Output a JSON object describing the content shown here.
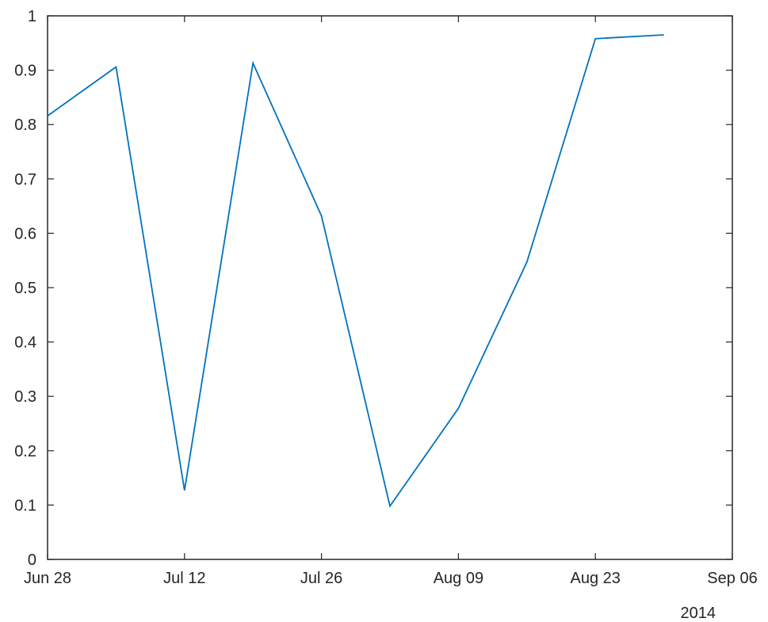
{
  "chart_data": {
    "type": "line",
    "title": "",
    "xlabel": "",
    "ylabel": "",
    "x_secondary_label": "2014",
    "x_axis": {
      "type": "date",
      "range": [
        "2014-06-28",
        "2014-09-06"
      ],
      "ticks": [
        {
          "date": "2014-06-28",
          "label": "Jun 28"
        },
        {
          "date": "2014-07-12",
          "label": "Jul 12"
        },
        {
          "date": "2014-07-26",
          "label": "Jul 26"
        },
        {
          "date": "2014-08-09",
          "label": "Aug 09"
        },
        {
          "date": "2014-08-23",
          "label": "Aug 23"
        },
        {
          "date": "2014-09-06",
          "label": "Sep 06"
        }
      ]
    },
    "y_axis": {
      "range": [
        0,
        1
      ],
      "ticks": [
        {
          "value": 0,
          "label": "0"
        },
        {
          "value": 0.1,
          "label": "0.1"
        },
        {
          "value": 0.2,
          "label": "0.2"
        },
        {
          "value": 0.3,
          "label": "0.3"
        },
        {
          "value": 0.4,
          "label": "0.4"
        },
        {
          "value": 0.5,
          "label": "0.5"
        },
        {
          "value": 0.6,
          "label": "0.6"
        },
        {
          "value": 0.7,
          "label": "0.7"
        },
        {
          "value": 0.8,
          "label": "0.8"
        },
        {
          "value": 0.9,
          "label": "0.9"
        },
        {
          "value": 1,
          "label": "1"
        }
      ]
    },
    "grid": false,
    "box": true,
    "series": [
      {
        "color": "#0072BD",
        "points": [
          {
            "x": "2014-06-28",
            "y": 0.816
          },
          {
            "x": "2014-07-05",
            "y": 0.906
          },
          {
            "x": "2014-07-12",
            "y": 0.127
          },
          {
            "x": "2014-07-19",
            "y": 0.913
          },
          {
            "x": "2014-07-26",
            "y": 0.632
          },
          {
            "x": "2014-08-02",
            "y": 0.098
          },
          {
            "x": "2014-08-09",
            "y": 0.278
          },
          {
            "x": "2014-08-16",
            "y": 0.547
          },
          {
            "x": "2014-08-23",
            "y": 0.958
          },
          {
            "x": "2014-08-30",
            "y": 0.965
          }
        ]
      }
    ]
  }
}
